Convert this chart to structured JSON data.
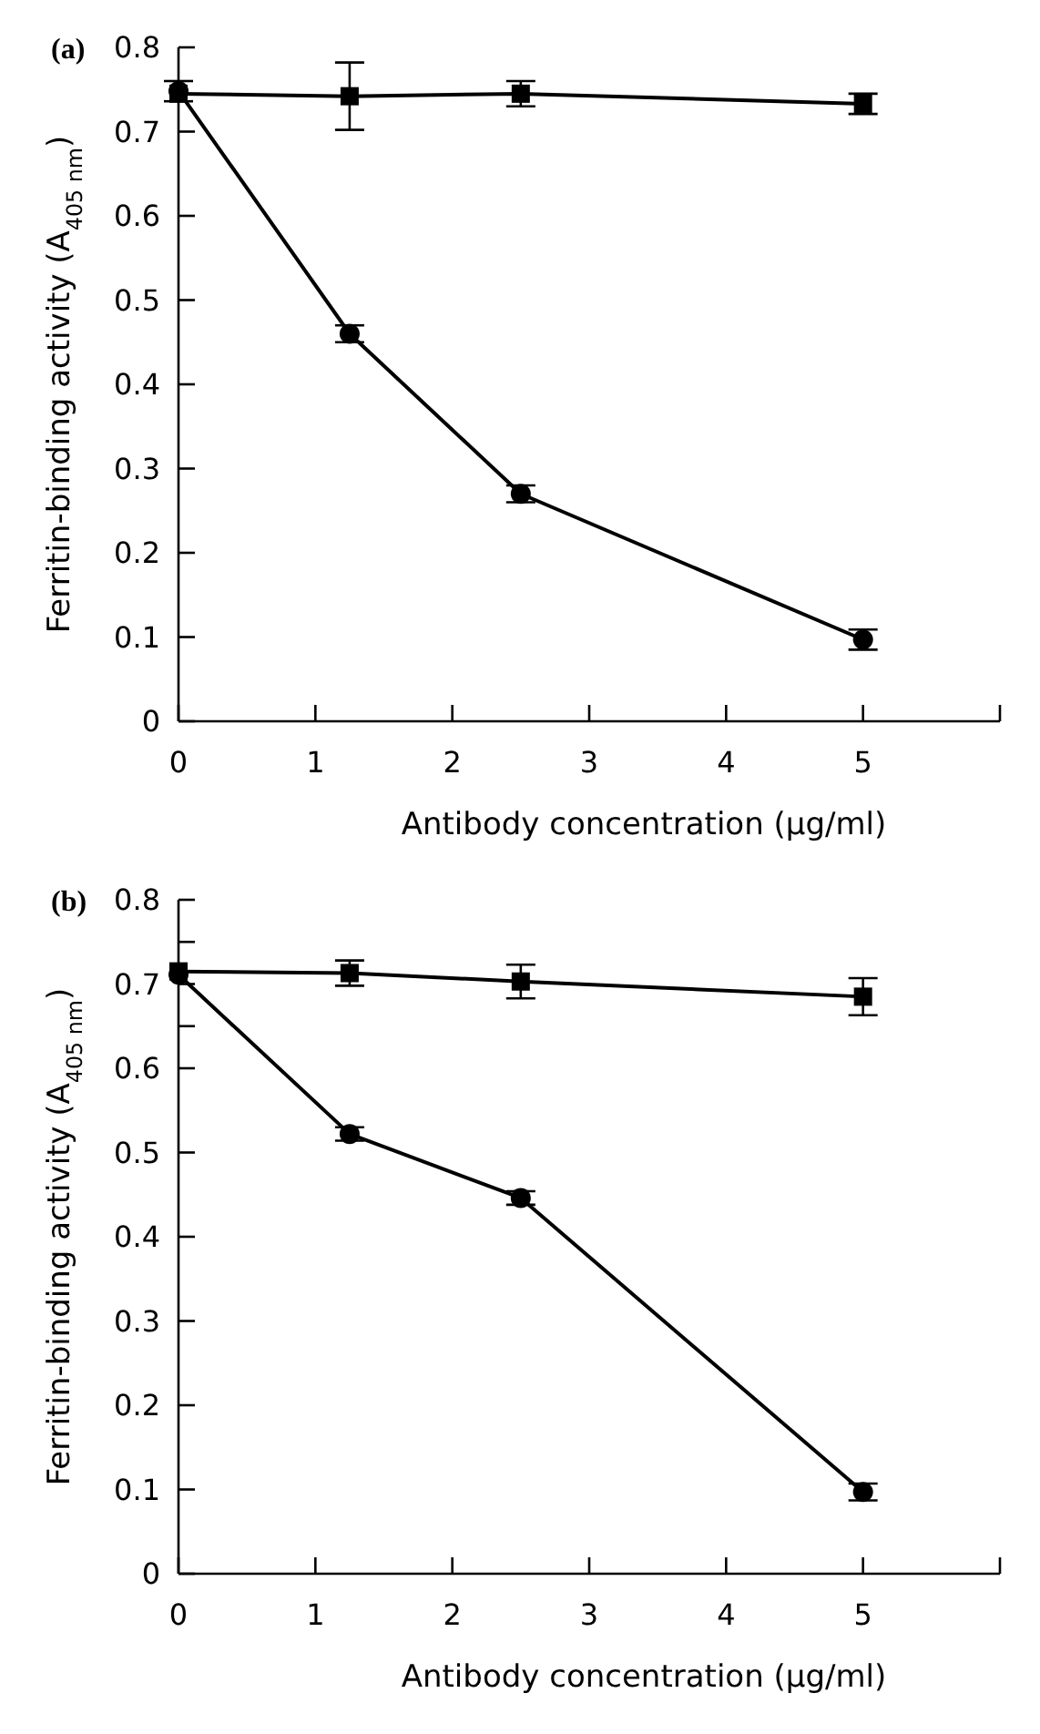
{
  "chart_data": [
    {
      "type": "line",
      "title": "(a)",
      "xlabel": "Antibody concentration (μg/ml)",
      "ylabel": "Ferritin-binding activity (A$_{405 nm}$)",
      "xlim": [
        0,
        6
      ],
      "xticks": [
        0,
        1,
        2,
        3,
        4,
        5,
        {
          "value": 6,
          "label": null
        }
      ],
      "ylim": [
        0,
        0.8
      ],
      "yticks": [
        0,
        0.1,
        0.2,
        0.3,
        0.4,
        0.5,
        0.6,
        0.7,
        0.8
      ],
      "grid": false,
      "series": [
        {
          "color": "#000000",
          "marker": "square",
          "x": [
            0,
            1.25,
            2.5,
            5
          ],
          "values": [
            0.745,
            0.742,
            0.745,
            0.733
          ],
          "errors": [
            null,
            0.04,
            0.015,
            0.012
          ]
        },
        {
          "color": "#000000",
          "marker": "circle",
          "x": [
            0,
            1.25,
            2.5,
            5
          ],
          "values": [
            0.748,
            0.46,
            0.27,
            0.097
          ],
          "errors": [
            0.012,
            0.01,
            0.01,
            0.012
          ]
        }
      ]
    },
    {
      "type": "line",
      "title": "(b)",
      "xlabel": "Antibody concentration (μg/ml)",
      "ylabel": "Ferritin-binding activity (A$_{405 nm}$)",
      "xlim": [
        0,
        6
      ],
      "xticks": [
        0,
        1,
        2,
        3,
        4,
        5,
        {
          "value": 6,
          "label": null
        }
      ],
      "ylim": [
        0,
        0.8
      ],
      "yticks": [
        0,
        0.1,
        0.2,
        0.3,
        0.4,
        0.5,
        0.6,
        {
          "value": 0.65,
          "label": null
        },
        0.7,
        {
          "value": 0.75,
          "label": null
        },
        0.8
      ],
      "grid": false,
      "series": [
        {
          "color": "#000000",
          "marker": "square",
          "x": [
            0,
            1.25,
            2.5,
            5
          ],
          "values": [
            0.715,
            0.713,
            0.703,
            0.685
          ],
          "errors": [
            null,
            0.015,
            0.02,
            0.022
          ]
        },
        {
          "color": "#000000",
          "marker": "circle",
          "x": [
            0,
            1.25,
            2.5,
            5
          ],
          "values": [
            0.711,
            0.522,
            0.446,
            0.097
          ],
          "errors": [
            null,
            0.008,
            0.008,
            0.01
          ]
        }
      ]
    }
  ]
}
